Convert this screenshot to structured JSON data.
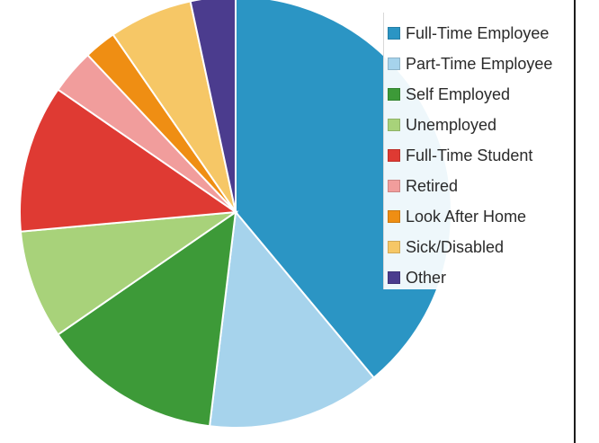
{
  "chart_data": {
    "type": "pie",
    "categories": [
      "Full-Time Employee",
      "Part-Time Employee",
      "Self Employed",
      "Unemployed",
      "Full-Time Student",
      "Retired",
      "Look After Home",
      "Sick/Disabled",
      "Other"
    ],
    "values": [
      40.5,
      13.5,
      14.0,
      8.5,
      11.5,
      3.5,
      2.5,
      6.5,
      3.5
    ],
    "colors": [
      "#2b95c4",
      "#a6d3ec",
      "#3d9a38",
      "#a8d27a",
      "#df3a33",
      "#f19d9c",
      "#ef8e13",
      "#f6c766",
      "#4b3c8e"
    ],
    "start_angle_deg": 0,
    "direction": "clockwise",
    "legend": {
      "position": "top-right"
    },
    "title": ""
  }
}
